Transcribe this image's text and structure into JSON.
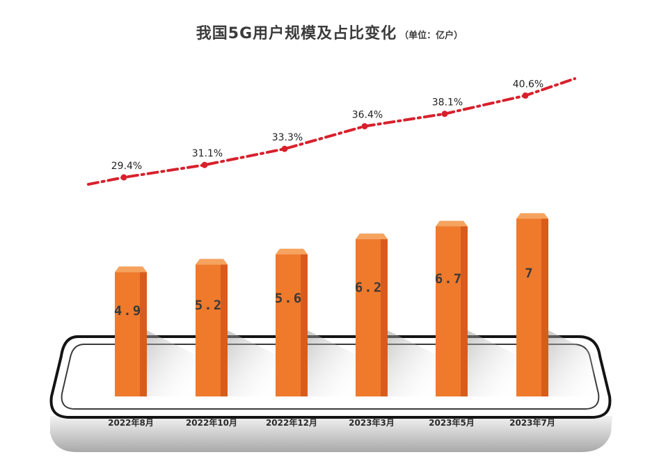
{
  "title": "我国5G用户规模及占比变化",
  "subtitle": "（单位：亿户）",
  "chart_data": {
    "type": "bar",
    "categories": [
      "2022年8月",
      "2022年10月",
      "2022年12月",
      "2023年3月",
      "2023年5月",
      "2023年7月"
    ],
    "series": [
      {
        "type": "bar",
        "values": [
          4.9,
          5.2,
          5.6,
          6.2,
          6.7,
          7
        ],
        "labels": [
          "4.9",
          "5.2",
          "5.6",
          "6.2",
          "6.7",
          "7"
        ]
      },
      {
        "type": "line",
        "values": [
          29.4,
          31.1,
          33.3,
          36.4,
          38.1,
          40.6
        ],
        "labels": [
          "29.4%",
          "31.1%",
          "33.3%",
          "36.4%",
          "38.1%",
          "40.6%"
        ]
      }
    ],
    "xlabel": "",
    "ylabel": "",
    "grid": false,
    "colors": {
      "bar_front": "#f07a2c",
      "bar_side": "#d85c1c",
      "bar_top": "#f5a35e",
      "line": "#d8202c",
      "label": "#3a3a3a",
      "phone_frame": "#1a1a1a"
    }
  }
}
